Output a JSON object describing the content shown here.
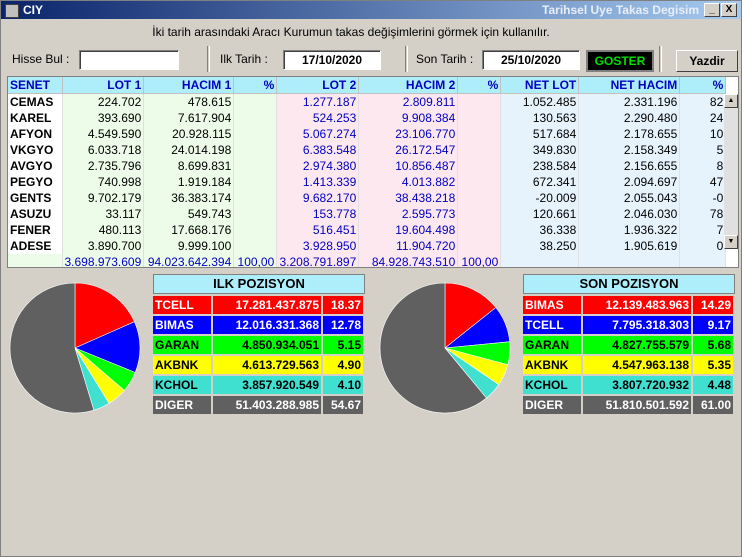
{
  "window": {
    "app_title": "CIY",
    "title": "Tarihsel Uye Takas Degisim",
    "minimize_label": "_",
    "close_label": "X"
  },
  "info_text": "İki tarih arasındaki  Aracı Kurumun takas değişimlerini görmek için kullanılır.",
  "filters": {
    "hisse_bul_label": "Hisse Bul :",
    "hisse_bul_value": "",
    "ilk_tarih_label": "Ilk Tarih :",
    "ilk_tarih_value": "17/10/2020",
    "son_tarih_label": "Son Tarih :",
    "son_tarih_value": "25/10/2020",
    "goster_label": "GOSTER",
    "yazdir_label": "Yazdir"
  },
  "table": {
    "headers": [
      "SENET",
      "LOT 1",
      "HACIM 1",
      "%",
      "LOT 2",
      "HACIM 2",
      "%",
      "NET LOT",
      "NET HACIM",
      "%"
    ],
    "rows": [
      [
        "CEMAS",
        "224.702",
        "478.615",
        "",
        "1.277.187",
        "2.809.811",
        "",
        "1.052.485",
        "2.331.196",
        "82"
      ],
      [
        "KAREL",
        "393.690",
        "7.617.904",
        "",
        "524.253",
        "9.908.384",
        "",
        "130.563",
        "2.290.480",
        "24"
      ],
      [
        "AFYON",
        "4.549.590",
        "20.928.115",
        "",
        "5.067.274",
        "23.106.770",
        "",
        "517.684",
        "2.178.655",
        "10"
      ],
      [
        "VKGYO",
        "6.033.718",
        "24.014.198",
        "",
        "6.383.548",
        "26.172.547",
        "",
        "349.830",
        "2.158.349",
        "5"
      ],
      [
        "AVGYO",
        "2.735.796",
        "8.699.831",
        "",
        "2.974.380",
        "10.856.487",
        "",
        "238.584",
        "2.156.655",
        "8"
      ],
      [
        "PEGYO",
        "740.998",
        "1.919.184",
        "",
        "1.413.339",
        "4.013.882",
        "",
        "672.341",
        "2.094.697",
        "47"
      ],
      [
        "GENTS",
        "9.702.179",
        "36.383.174",
        "",
        "9.682.170",
        "38.438.218",
        "",
        "-20.009",
        "2.055.043",
        "-0"
      ],
      [
        "ASUZU",
        "33.117",
        "549.743",
        "",
        "153.778",
        "2.595.773",
        "",
        "120.661",
        "2.046.030",
        "78"
      ],
      [
        "FENER",
        "480.113",
        "17.668.176",
        "",
        "516.451",
        "19.604.498",
        "",
        "36.338",
        "1.936.322",
        "7"
      ],
      [
        "ADESE",
        "3.890.700",
        "9.999.100",
        "",
        "3.928.950",
        "11.904.720",
        "",
        "38.250",
        "1.905.619",
        "0"
      ]
    ],
    "totals": [
      "",
      "3.698.973.609",
      "94.023.642.394",
      "100,00",
      "3.208.791.897",
      "84.928.743.510",
      "100,00",
      "",
      "",
      ""
    ],
    "scroll_up": "▲",
    "scroll_down": "▼"
  },
  "ilk_pozisyon": {
    "title": "ILK POZISYON",
    "items": [
      {
        "name": "TCELL",
        "value": "17.281.437.875",
        "pct": "18.37",
        "color": "#ff0000"
      },
      {
        "name": "BIMAS",
        "value": "12.016.331.368",
        "pct": "12.78",
        "color": "#0000ff"
      },
      {
        "name": "GARAN",
        "value": "4.850.934.051",
        "pct": "5.15",
        "color": "#00ff00"
      },
      {
        "name": "AKBNK",
        "value": "4.613.729.563",
        "pct": "4.90",
        "color": "#ffff00"
      },
      {
        "name": "KCHOL",
        "value": "3.857.920.549",
        "pct": "4.10",
        "color": "#40e0d0"
      },
      {
        "name": "DIGER",
        "value": "51.403.288.985",
        "pct": "54.67",
        "color": "#606060"
      }
    ]
  },
  "son_pozisyon": {
    "title": "SON POZISYON",
    "items": [
      {
        "name": "BIMAS",
        "value": "12.139.483.963",
        "pct": "14.29",
        "color": "#ff0000"
      },
      {
        "name": "TCELL",
        "value": "7.795.318.303",
        "pct": "9.17",
        "color": "#0000ff"
      },
      {
        "name": "GARAN",
        "value": "4.827.755.579",
        "pct": "5.68",
        "color": "#00ff00"
      },
      {
        "name": "AKBNK",
        "value": "4.547.963.138",
        "pct": "5.35",
        "color": "#ffff00"
      },
      {
        "name": "KCHOL",
        "value": "3.807.720.932",
        "pct": "4.48",
        "color": "#40e0d0"
      },
      {
        "name": "DIGER",
        "value": "51.810.501.592",
        "pct": "61.00",
        "color": "#606060"
      }
    ]
  }
}
